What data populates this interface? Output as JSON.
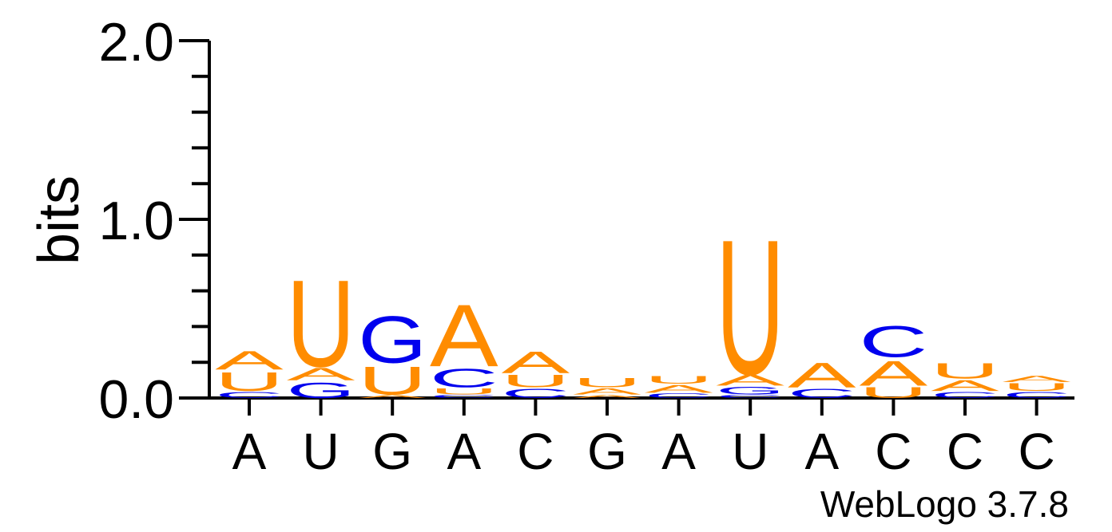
{
  "chart_data": {
    "type": "sequence-logo",
    "ylabel": "bits",
    "ylim": [
      0,
      2
    ],
    "yticks": [
      "0.0",
      "1.0",
      "2.0"
    ],
    "y_minor_step": 0.2,
    "positions": [
      {
        "label": "A",
        "stack": [
          {
            "letter": "C",
            "bits": 0.04
          },
          {
            "letter": "U",
            "bits": 0.12
          },
          {
            "letter": "A",
            "bits": 0.12
          }
        ]
      },
      {
        "label": "U",
        "stack": [
          {
            "letter": "G",
            "bits": 0.1
          },
          {
            "letter": "A",
            "bits": 0.08
          },
          {
            "letter": "U",
            "bits": 0.56
          }
        ]
      },
      {
        "label": "G",
        "stack": [
          {
            "letter": "A",
            "bits": 0.02
          },
          {
            "letter": "U",
            "bits": 0.18
          },
          {
            "letter": "G",
            "bits": 0.3
          }
        ]
      },
      {
        "label": "A",
        "stack": [
          {
            "letter": "C",
            "bits": 0.02
          },
          {
            "letter": "U",
            "bits": 0.04
          },
          {
            "letter": "C",
            "bits": 0.12
          },
          {
            "letter": "A",
            "bits": 0.4
          }
        ]
      },
      {
        "label": "C",
        "stack": [
          {
            "letter": "C",
            "bits": 0.06
          },
          {
            "letter": "U",
            "bits": 0.08
          },
          {
            "letter": "A",
            "bits": 0.14
          }
        ]
      },
      {
        "label": "G",
        "stack": [
          {
            "letter": "A",
            "bits": 0.02
          },
          {
            "letter": "A",
            "bits": 0.04
          },
          {
            "letter": "U",
            "bits": 0.06
          }
        ]
      },
      {
        "label": "A",
        "stack": [
          {
            "letter": "C",
            "bits": 0.03
          },
          {
            "letter": "A",
            "bits": 0.05
          },
          {
            "letter": "U",
            "bits": 0.05
          }
        ]
      },
      {
        "label": "U",
        "stack": [
          {
            "letter": "C",
            "bits": 0.02
          },
          {
            "letter": "G",
            "bits": 0.05
          },
          {
            "letter": "A",
            "bits": 0.07
          },
          {
            "letter": "U",
            "bits": 0.87
          }
        ]
      },
      {
        "label": "A",
        "stack": [
          {
            "letter": "C",
            "bits": 0.06
          },
          {
            "letter": "A",
            "bits": 0.16
          }
        ]
      },
      {
        "label": "C",
        "stack": [
          {
            "letter": "U",
            "bits": 0.07
          },
          {
            "letter": "A",
            "bits": 0.16
          },
          {
            "letter": "C",
            "bits": 0.2
          }
        ]
      },
      {
        "label": "C",
        "stack": [
          {
            "letter": "C",
            "bits": 0.04
          },
          {
            "letter": "A",
            "bits": 0.07
          },
          {
            "letter": "U",
            "bits": 0.1
          }
        ]
      },
      {
        "label": "C",
        "stack": [
          {
            "letter": "C",
            "bits": 0.04
          },
          {
            "letter": "U",
            "bits": 0.05
          },
          {
            "letter": "A",
            "bits": 0.04
          }
        ]
      }
    ],
    "colors": {
      "A": "#ff8c00",
      "U": "#ff8c00",
      "G": "#0000ee",
      "C": "#0000ee"
    },
    "credit": "WebLogo 3.7.8",
    "grid": false
  }
}
